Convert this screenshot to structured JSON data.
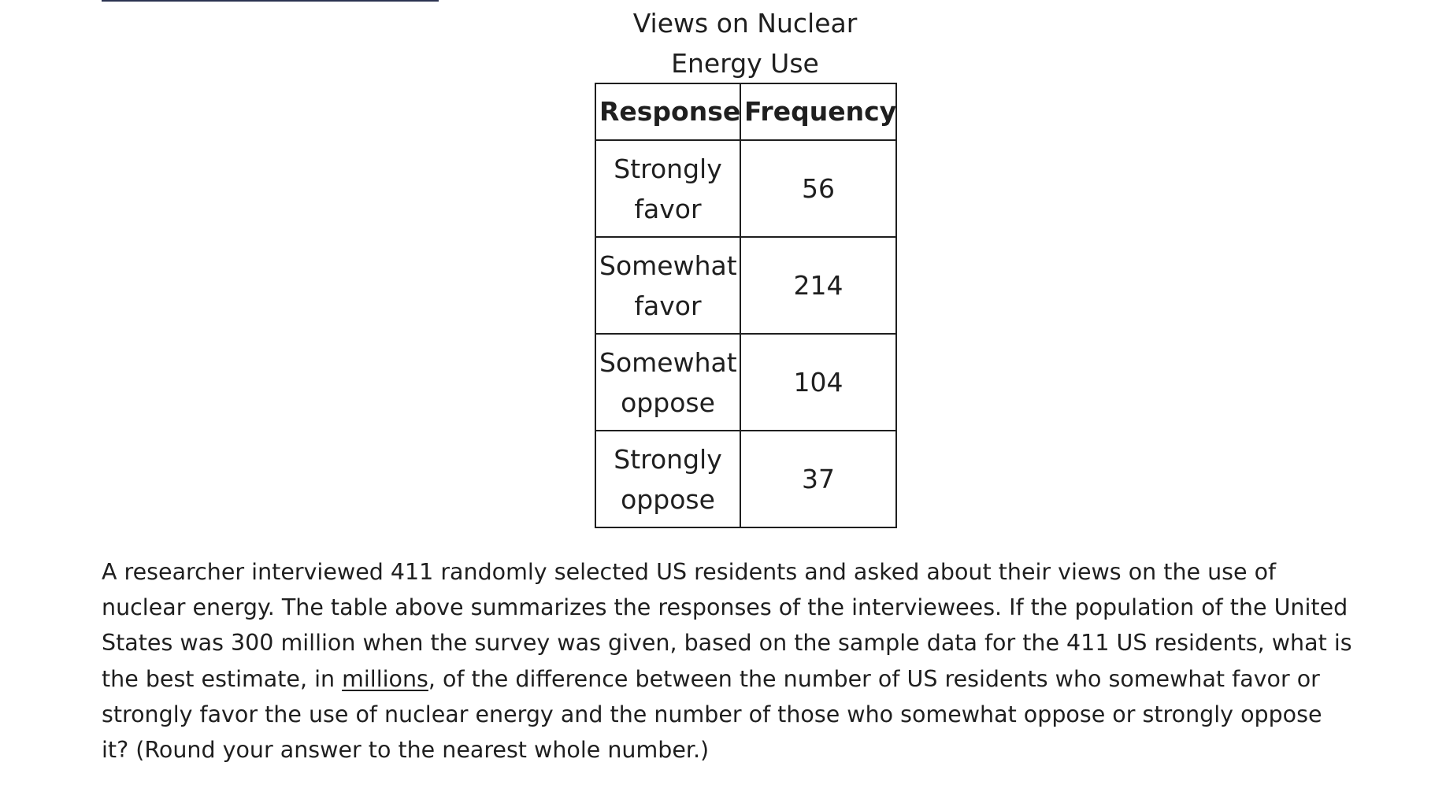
{
  "table": {
    "caption_line1": "Views on Nuclear",
    "caption_line2": "Energy Use",
    "headers": [
      "Response",
      "Frequency"
    ],
    "rows": [
      {
        "response_line1": "Strongly",
        "response_line2": "favor",
        "frequency": "56"
      },
      {
        "response_line1": "Somewhat",
        "response_line2": "favor",
        "frequency": "214"
      },
      {
        "response_line1": "Somewhat",
        "response_line2": "oppose",
        "frequency": "104"
      },
      {
        "response_line1": "Strongly",
        "response_line2": "oppose",
        "frequency": "37"
      }
    ]
  },
  "question": {
    "text_before": "A researcher interviewed 411 randomly selected US residents and asked about their views on the use of nuclear energy. The table above summarizes the responses of the interviewees. If the population of the United States was 300 million when the survey was given, based on the sample data for the 411 US residents, what is the best estimate, in ",
    "underlined": "millions",
    "text_after": ", of the difference between the number of US residents who somewhat favor or strongly favor the use of nuclear energy and the number of those who somewhat oppose or strongly oppose it? (Round your answer to the nearest whole number.)"
  }
}
